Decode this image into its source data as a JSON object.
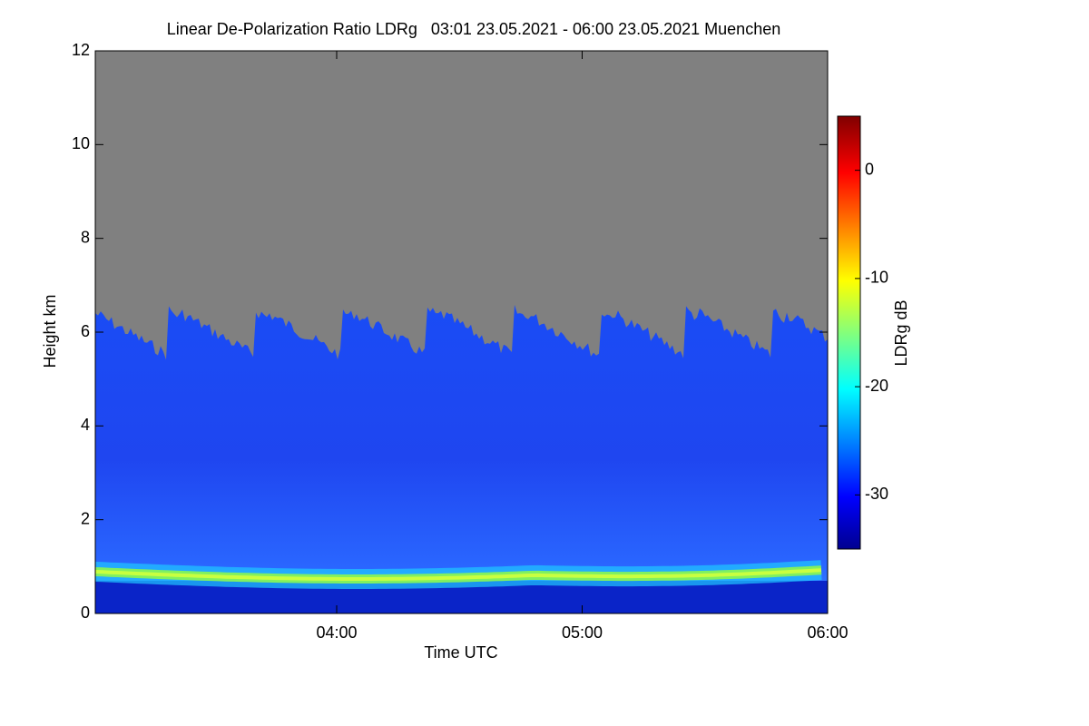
{
  "chart_data": {
    "type": "heatmap",
    "title": "Linear De-Polarization Ratio LDRg   03:01 23.05.2021 - 06:00 23.05.2021 Muenchen",
    "xlabel": "Time UTC",
    "ylabel": "Height km",
    "colorbar_label": "LDRg dB",
    "xlim": [
      181,
      360
    ],
    "xticks": [
      {
        "value": 240,
        "label": "04:00"
      },
      {
        "value": 300,
        "label": "05:00"
      },
      {
        "value": 360,
        "label": "06:00"
      }
    ],
    "ylim": [
      0,
      12
    ],
    "yticks": [
      0,
      2,
      4,
      6,
      8,
      10,
      12
    ],
    "clim": [
      -35,
      5
    ],
    "cticks": [
      -30,
      -20,
      -10,
      0
    ],
    "colormap": "jet"
  }
}
